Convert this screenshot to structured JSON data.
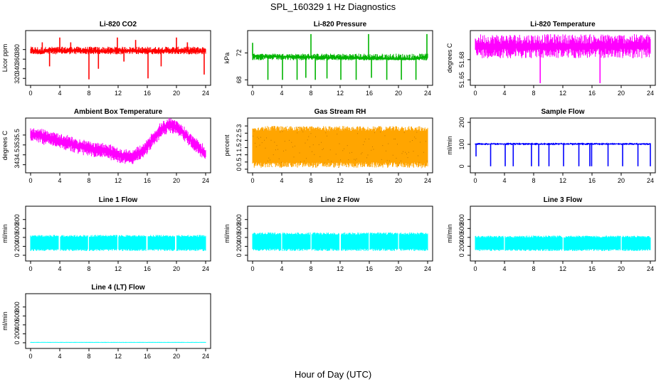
{
  "figure": {
    "title": "SPL_160329  1 Hz Diagnostics",
    "xlabel": "Hour of Day (UTC)"
  },
  "chart_data": [
    {
      "type": "line",
      "title": "Li-820 CO2",
      "ylabel": "Licor ppm",
      "color": "#ff0000",
      "xlim": [
        0,
        24
      ],
      "ylim": [
        310,
        415
      ],
      "xticks": [
        0,
        4,
        8,
        12,
        16,
        20,
        24
      ],
      "yticks": [
        320,
        340,
        360,
        380
      ],
      "series": [
        {
          "name": "CO2",
          "x": [
            0,
            0.5,
            1.5,
            2,
            4,
            6,
            8,
            10,
            12,
            14,
            16,
            18,
            20,
            22,
            23.6,
            24
          ],
          "values": [
            378,
            376,
            372,
            379,
            377,
            378,
            377,
            376,
            378,
            377,
            376,
            378,
            377,
            378,
            376,
            379
          ],
          "band": [
            370,
            386
          ],
          "spikes": [
            {
              "x": 1.6,
              "to": 395
            },
            {
              "x": 2.6,
              "to": 345
            },
            {
              "x": 4.0,
              "to": 405
            },
            {
              "x": 5.5,
              "to": 395
            },
            {
              "x": 8.0,
              "to": 318
            },
            {
              "x": 9.3,
              "to": 340
            },
            {
              "x": 11.9,
              "to": 405
            },
            {
              "x": 12.8,
              "to": 355
            },
            {
              "x": 14.4,
              "to": 400
            },
            {
              "x": 16.1,
              "to": 320
            },
            {
              "x": 17.9,
              "to": 345
            },
            {
              "x": 20.0,
              "to": 405
            },
            {
              "x": 21.5,
              "to": 395
            },
            {
              "x": 23.8,
              "to": 328
            }
          ]
        }
      ]
    },
    {
      "type": "line",
      "title": "Li-820 Pressure",
      "ylabel": "kPa",
      "color": "#00b400",
      "xlim": [
        0,
        24
      ],
      "ylim": [
        67.5,
        75
      ],
      "xticks": [
        0,
        4,
        8,
        12,
        16,
        20,
        24
      ],
      "yticks": [
        68,
        72
      ],
      "series": [
        {
          "name": "Pressure",
          "x": [
            0,
            2,
            6,
            10,
            14,
            18,
            22,
            24
          ],
          "values": [
            71.6,
            71.5,
            71.4,
            71.3,
            71.2,
            71.1,
            71.0,
            71.5
          ],
          "band": [
            70.9,
            71.9
          ],
          "spikes": [
            {
              "x": 0.0,
              "to": 73.5
            },
            {
              "x": 2.1,
              "to": 68.0
            },
            {
              "x": 4.1,
              "to": 68.0
            },
            {
              "x": 6.1,
              "to": 68.0
            },
            {
              "x": 7.3,
              "to": 68.3
            },
            {
              "x": 8.0,
              "to": 74.8
            },
            {
              "x": 8.6,
              "to": 68.0
            },
            {
              "x": 10.2,
              "to": 68.2
            },
            {
              "x": 12.1,
              "to": 68.0
            },
            {
              "x": 14.2,
              "to": 68.0
            },
            {
              "x": 15.9,
              "to": 74.8
            },
            {
              "x": 16.3,
              "to": 68.3
            },
            {
              "x": 18.4,
              "to": 68.0
            },
            {
              "x": 20.4,
              "to": 68.0
            },
            {
              "x": 22.4,
              "to": 68.0
            },
            {
              "x": 23.9,
              "to": 74.8
            }
          ]
        }
      ]
    },
    {
      "type": "line",
      "title": "Li-820 Temperature",
      "ylabel": "degrees C",
      "color": "#ff00ff",
      "xlim": [
        0,
        24
      ],
      "ylim": [
        51.645,
        51.72
      ],
      "xticks": [
        0,
        4,
        8,
        12,
        16,
        20,
        24
      ],
      "yticks": [
        51.65,
        51.68
      ],
      "series": [
        {
          "name": "Temperature",
          "x": [
            0,
            24
          ],
          "values": [
            51.7,
            51.7
          ],
          "band": [
            51.682,
            51.718
          ],
          "spikes": [
            {
              "x": 8.9,
              "to": 51.645
            },
            {
              "x": 17.1,
              "to": 51.645
            }
          ]
        }
      ]
    },
    {
      "type": "line",
      "title": "Ambient Box Temperature",
      "ylabel": "degrees C",
      "color": "#ff00ff",
      "xlim": [
        0,
        24
      ],
      "ylim": [
        33.7,
        36.25
      ],
      "xticks": [
        0,
        4,
        8,
        12,
        16,
        20,
        24
      ],
      "yticks": [
        34.0,
        34.5,
        35.0,
        35.5
      ],
      "series": [
        {
          "name": "Box Temperature",
          "x": [
            0,
            1,
            2,
            3,
            4,
            5,
            6,
            7,
            8,
            9,
            10,
            11,
            12,
            13,
            14,
            15,
            16,
            17,
            18,
            19,
            20,
            21,
            22,
            23,
            24
          ],
          "values": [
            35.5,
            35.5,
            35.4,
            35.3,
            35.2,
            35.1,
            35.0,
            34.9,
            34.8,
            34.8,
            34.7,
            34.6,
            34.5,
            34.4,
            34.4,
            34.6,
            34.9,
            35.4,
            35.8,
            36.0,
            35.9,
            35.6,
            35.2,
            34.9,
            34.5
          ],
          "band_halfwidth": 0.35
        }
      ]
    },
    {
      "type": "line",
      "title": "Gas Stream RH",
      "ylabel": "percent",
      "color": "#ffa500",
      "xlim": [
        0,
        24
      ],
      "ylim": [
        -0.1,
        3.4
      ],
      "xticks": [
        0,
        4,
        8,
        12,
        16,
        20,
        24
      ],
      "yticks": [
        0.0,
        0.5,
        1.0,
        1.5,
        2.0,
        2.5,
        3.0
      ],
      "series": [
        {
          "name": "RH",
          "x": [
            0,
            24
          ],
          "values": [
            1.6,
            1.6
          ],
          "band": [
            0.1,
            3.0
          ]
        }
      ]
    },
    {
      "type": "line",
      "title": "Sample Flow",
      "ylabel": "ml/min",
      "color": "#0000ff",
      "xlim": [
        0,
        24
      ],
      "ylim": [
        -20,
        210
      ],
      "xticks": [
        0,
        4,
        8,
        12,
        16,
        20,
        24
      ],
      "yticks": [
        0,
        100,
        200
      ],
      "series": [
        {
          "name": "Sample Flow",
          "x": [
            0,
            24
          ],
          "values": [
            102,
            102
          ],
          "band": [
            96,
            107
          ],
          "spikes": [
            {
              "x": 0.1,
              "to": 45
            },
            {
              "x": 2.1,
              "to": 0
            },
            {
              "x": 4.1,
              "to": 0
            },
            {
              "x": 5.2,
              "to": 0
            },
            {
              "x": 7.7,
              "to": 0
            },
            {
              "x": 8.7,
              "to": 0
            },
            {
              "x": 10.1,
              "to": 0
            },
            {
              "x": 12.1,
              "to": 0
            },
            {
              "x": 14.2,
              "to": 0
            },
            {
              "x": 15.7,
              "to": 0
            },
            {
              "x": 15.95,
              "to": 0
            },
            {
              "x": 18.2,
              "to": 0
            },
            {
              "x": 20.2,
              "to": 0
            },
            {
              "x": 22.3,
              "to": 0
            },
            {
              "x": 24.0,
              "to": 0
            }
          ]
        }
      ]
    },
    {
      "type": "line",
      "title": "Line 1 Flow",
      "ylabel": "ml/min",
      "color": "#00ffff",
      "xlim": [
        0,
        24
      ],
      "ylim": [
        -80,
        1050
      ],
      "xticks": [
        0,
        4,
        8,
        12,
        16,
        20,
        24
      ],
      "yticks": [
        0,
        200,
        400,
        600,
        800
      ],
      "series": [
        {
          "name": "Line 1",
          "x": [
            0,
            24
          ],
          "values": [
            275,
            275
          ],
          "band": [
            95,
            455
          ],
          "gaps": [
            3.95,
            7.95,
            11.95,
            15.95,
            19.9
          ]
        }
      ]
    },
    {
      "type": "line",
      "title": "Line 2 Flow",
      "ylabel": "ml/min",
      "color": "#00ffff",
      "xlim": [
        0,
        24
      ],
      "ylim": [
        -80,
        1050
      ],
      "xticks": [
        0,
        4,
        8,
        12,
        16,
        20,
        24
      ],
      "yticks": [
        0,
        200,
        400,
        600,
        800
      ],
      "series": [
        {
          "name": "Line 2",
          "x": [
            0,
            24
          ],
          "values": [
            310,
            310
          ],
          "band": [
            95,
            510
          ],
          "gaps": [
            4.0,
            8.0,
            12.0,
            16.0,
            20.0
          ]
        }
      ]
    },
    {
      "type": "line",
      "title": "Line 3 Flow",
      "ylabel": "ml/min",
      "color": "#00ffff",
      "xlim": [
        0,
        24
      ],
      "ylim": [
        -80,
        1050
      ],
      "xticks": [
        0,
        4,
        8,
        12,
        16,
        20,
        24
      ],
      "yticks": [
        0,
        200,
        400,
        600,
        800
      ],
      "series": [
        {
          "name": "Line 3",
          "x": [
            0,
            24
          ],
          "values": [
            265,
            265
          ],
          "band": [
            95,
            440
          ],
          "gaps": [
            4.0,
            12.05,
            20.0
          ]
        }
      ]
    },
    {
      "type": "line",
      "title": "Line 4 (LT) Flow",
      "ylabel": "ml/min",
      "color": "#00ffff",
      "xlim": [
        0,
        24
      ],
      "ylim": [
        -80,
        1050
      ],
      "xticks": [
        0,
        4,
        8,
        12,
        16,
        20,
        24
      ],
      "yticks": [
        0,
        200,
        400,
        600,
        800
      ],
      "series": [
        {
          "name": "Line 4",
          "x": [
            0,
            24
          ],
          "values": [
            8,
            8
          ],
          "band": [
            0,
            18
          ]
        }
      ]
    }
  ]
}
